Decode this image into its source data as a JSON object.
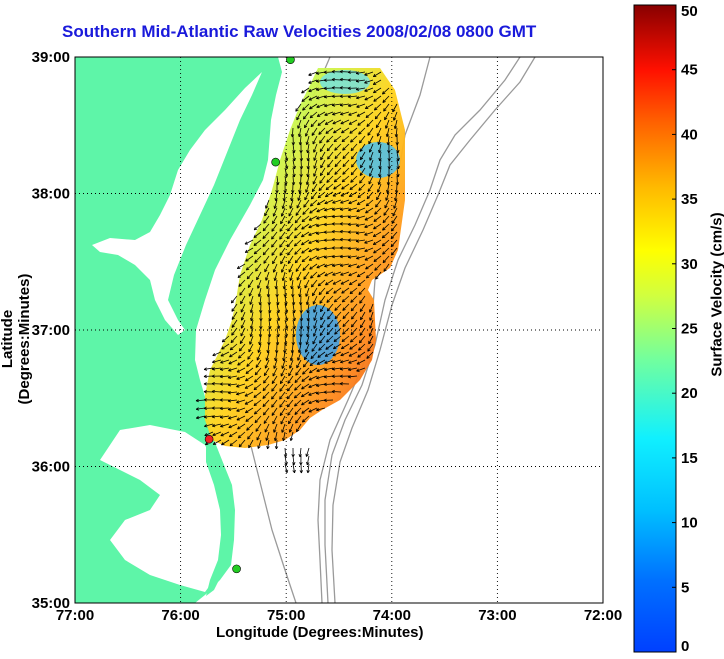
{
  "title": "Southern Mid-Atlantic Raw Velocities 2008/02/08 0800 GMT",
  "xlabel": "Longitude (Degrees:Minutes)",
  "ylabel": "Latitude (Degrees:Minutes)",
  "colorbar": {
    "label": "Surface Velocity (cm/s)",
    "ticks": [
      "0",
      "5",
      "10",
      "15",
      "20",
      "25",
      "30",
      "35",
      "40",
      "45",
      "50"
    ],
    "range": [
      0,
      50
    ],
    "colormap": "jet"
  },
  "axes": {
    "x_ticks": [
      "77:00",
      "76:00",
      "75:00",
      "74:00",
      "73:00",
      "72:00"
    ],
    "y_ticks": [
      "35:00",
      "36:00",
      "37:00",
      "38:00",
      "39:00"
    ],
    "xlim": [
      -77,
      -72
    ],
    "ylim": [
      35,
      39
    ],
    "grid": "dotted"
  },
  "colors": {
    "land": "#5ef5a8",
    "title": "#1a1adb",
    "coastline": "#000000",
    "bathymetry": "#9a9a9a"
  },
  "stations": [
    {
      "lon": -74.96,
      "lat": 38.98,
      "color": "#22cc22"
    },
    {
      "lon": -75.1,
      "lat": 38.23,
      "color": "#22cc22"
    },
    {
      "lon": -75.73,
      "lat": 36.2,
      "color": "#ee2222"
    },
    {
      "lon": -75.47,
      "lat": 35.25,
      "color": "#22cc22"
    }
  ]
}
